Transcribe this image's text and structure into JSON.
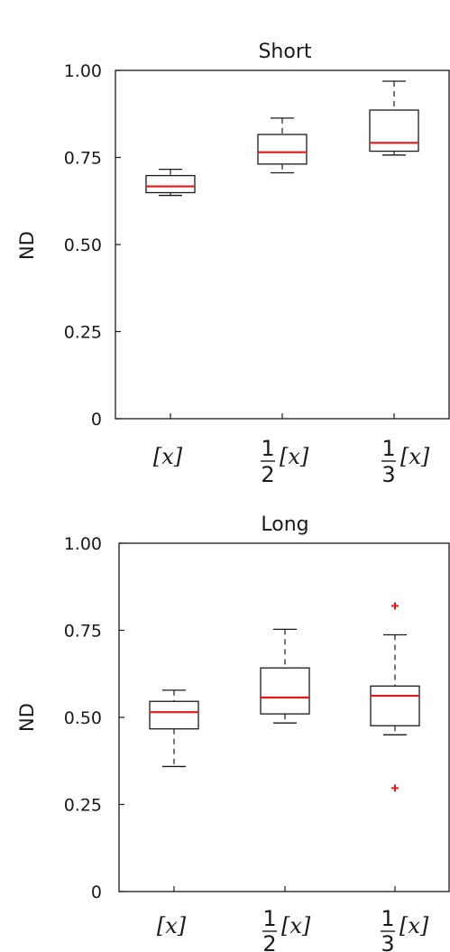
{
  "chart_data": [
    {
      "type": "boxplot",
      "title": "Short",
      "ylabel": "ND",
      "xlabel": "",
      "ylim": [
        0,
        1.0
      ],
      "yticks": [
        0,
        0.25,
        0.5,
        0.75,
        1.0
      ],
      "ytick_labels": [
        "0",
        "0.25",
        "0.50",
        "0.75",
        "1.00"
      ],
      "categories": [
        {
          "prefix_num": "",
          "prefix_den": "",
          "text": "[x]"
        },
        {
          "prefix_num": "1",
          "prefix_den": "2",
          "text": "[x]"
        },
        {
          "prefix_num": "1",
          "prefix_den": "3",
          "text": "[x]"
        }
      ],
      "boxes": [
        {
          "whisker_low": 0.641,
          "q1": 0.649,
          "median": 0.667,
          "q3": 0.698,
          "whisker_high": 0.716,
          "outliers": []
        },
        {
          "whisker_low": 0.706,
          "q1": 0.731,
          "median": 0.765,
          "q3": 0.816,
          "whisker_high": 0.863,
          "outliers": []
        },
        {
          "whisker_low": 0.757,
          "q1": 0.768,
          "median": 0.792,
          "q3": 0.886,
          "whisker_high": 0.969,
          "outliers": []
        }
      ],
      "grid": false,
      "colors": {
        "box": "#1a1a1a",
        "median": "#e0191d",
        "outlier": "#e0191d"
      }
    },
    {
      "type": "boxplot",
      "title": "Long",
      "ylabel": "ND",
      "xlabel": "",
      "ylim": [
        0,
        1.0
      ],
      "yticks": [
        0,
        0.25,
        0.5,
        0.75,
        1.0
      ],
      "ytick_labels": [
        "0",
        "0.25",
        "0.50",
        "0.75",
        "1.00"
      ],
      "categories": [
        {
          "prefix_num": "",
          "prefix_den": "",
          "text": "[x]"
        },
        {
          "prefix_num": "1",
          "prefix_den": "2",
          "text": "[x]"
        },
        {
          "prefix_num": "1",
          "prefix_den": "3",
          "text": "[x]"
        }
      ],
      "boxes": [
        {
          "whisker_low": 0.359,
          "q1": 0.467,
          "median": 0.515,
          "q3": 0.546,
          "whisker_high": 0.578,
          "outliers": []
        },
        {
          "whisker_low": 0.484,
          "q1": 0.51,
          "median": 0.557,
          "q3": 0.642,
          "whisker_high": 0.753,
          "outliers": []
        },
        {
          "whisker_low": 0.45,
          "q1": 0.476,
          "median": 0.562,
          "q3": 0.59,
          "whisker_high": 0.737,
          "outliers": [
            0.82,
            0.297
          ]
        }
      ],
      "grid": false,
      "colors": {
        "box": "#1a1a1a",
        "median": "#e0191d",
        "outlier": "#e0191d"
      }
    }
  ]
}
